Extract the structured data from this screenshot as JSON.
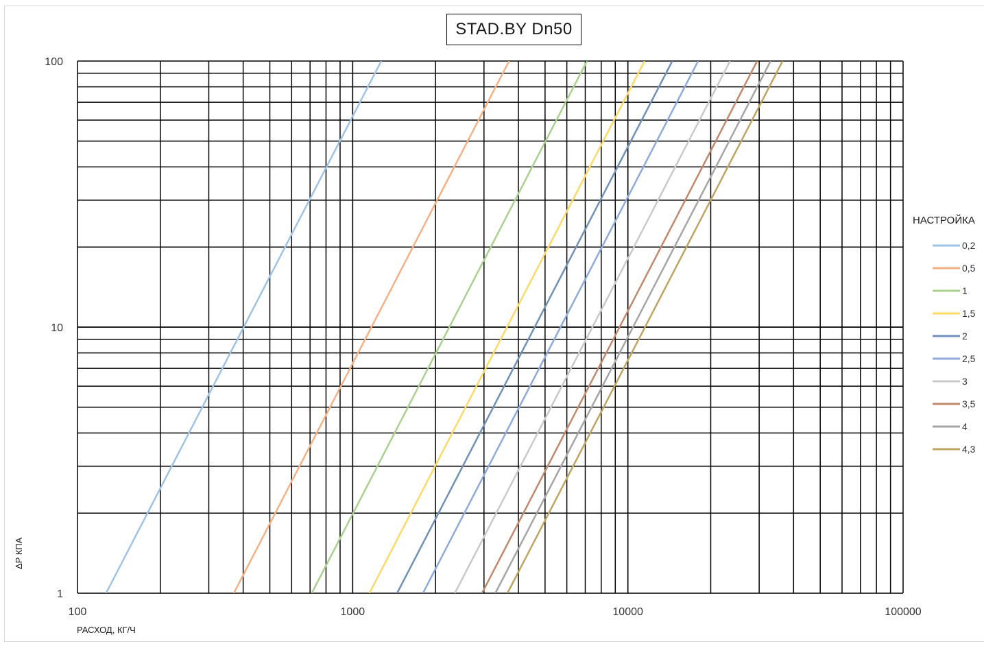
{
  "chart_data": {
    "type": "line",
    "title": "STAD.BY Dn50",
    "xlabel": "РАСХОД, КГ/Ч",
    "ylabel": "ΔP КПА",
    "x_scale": "log",
    "y_scale": "log",
    "xlim": [
      100,
      100000
    ],
    "ylim": [
      1,
      100
    ],
    "x_tick_labels": [
      "100",
      "1000",
      "10000",
      "100000"
    ],
    "y_tick_labels": [
      "1",
      "10",
      "100"
    ],
    "grid": "major and minor, black",
    "legend_title": "НАСТРОЙКА",
    "legend_position": "right",
    "series": [
      {
        "name": "0,2",
        "color": "#9dc3e6",
        "points": [
          [
            127,
            1
          ],
          [
            1270,
            100
          ]
        ]
      },
      {
        "name": "0,5",
        "color": "#f4b183",
        "points": [
          [
            370,
            1
          ],
          [
            3700,
            100
          ]
        ]
      },
      {
        "name": "1",
        "color": "#a9d18e",
        "points": [
          [
            710,
            1
          ],
          [
            7100,
            100
          ]
        ]
      },
      {
        "name": "1,5",
        "color": "#ffd966",
        "points": [
          [
            1150,
            1
          ],
          [
            11500,
            100
          ]
        ]
      },
      {
        "name": "2",
        "color": "#6f90b8",
        "points": [
          [
            1450,
            1
          ],
          [
            14500,
            100
          ]
        ]
      },
      {
        "name": "2,5",
        "color": "#8eaadb",
        "points": [
          [
            1800,
            1
          ],
          [
            18000,
            100
          ]
        ]
      },
      {
        "name": "3",
        "color": "#c9c9c9",
        "points": [
          [
            2350,
            1
          ],
          [
            23500,
            100
          ]
        ]
      },
      {
        "name": "3,5",
        "color": "#c0896b",
        "points": [
          [
            2950,
            1
          ],
          [
            29500,
            100
          ]
        ]
      },
      {
        "name": "4",
        "color": "#a5a5a5",
        "points": [
          [
            3300,
            1
          ],
          [
            33000,
            100
          ]
        ]
      },
      {
        "name": "4,3",
        "color": "#bfa361",
        "points": [
          [
            3650,
            1
          ],
          [
            36500,
            100
          ]
        ]
      }
    ]
  }
}
